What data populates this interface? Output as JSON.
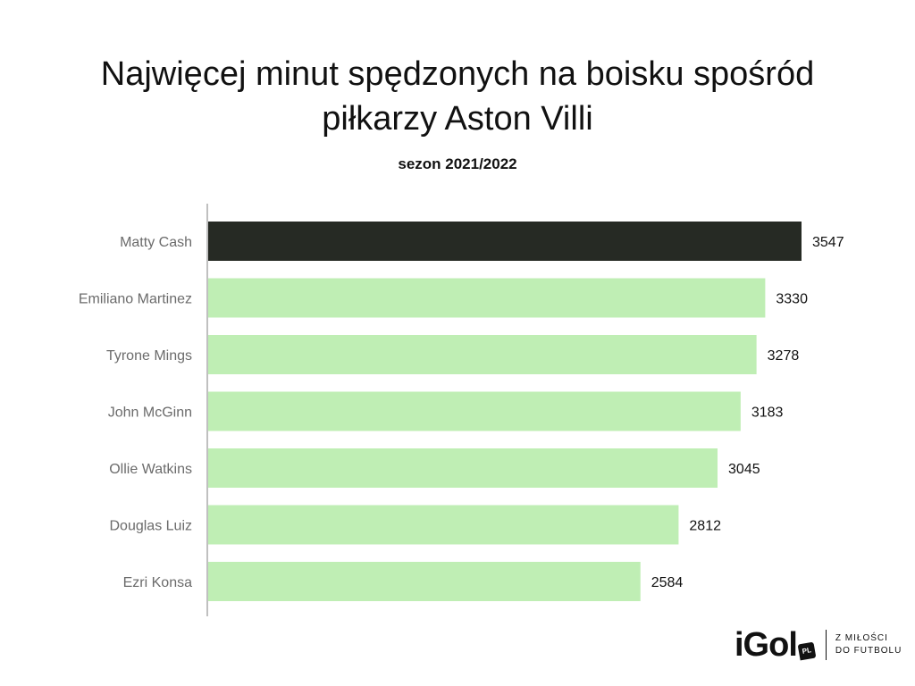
{
  "chart_data": {
    "type": "bar",
    "orientation": "horizontal",
    "title_lines": [
      "Najwięcej minut spędzonych na boisku spośród",
      "piłkarzy Aston Villi"
    ],
    "subtitle": "sezon 2021/2022",
    "categories": [
      "Matty Cash",
      "Emiliano Martinez",
      "Tyrone Mings",
      "John McGinn",
      "Ollie Watkins",
      "Douglas Luiz",
      "Ezri Konsa"
    ],
    "values": [
      3547,
      3330,
      3278,
      3183,
      3045,
      2812,
      2584
    ],
    "xlim": [
      0,
      3547
    ],
    "grid": false,
    "legend": "none",
    "colors": {
      "highlight": "#262a24",
      "bar": "#bfeeb4",
      "axis": "#c0c0c0"
    }
  },
  "branding": {
    "logo_text": "iGol",
    "logo_badge": "PL",
    "tagline_line1": "Z MIŁOŚCI",
    "tagline_line2": "DO FUTBOLU"
  }
}
